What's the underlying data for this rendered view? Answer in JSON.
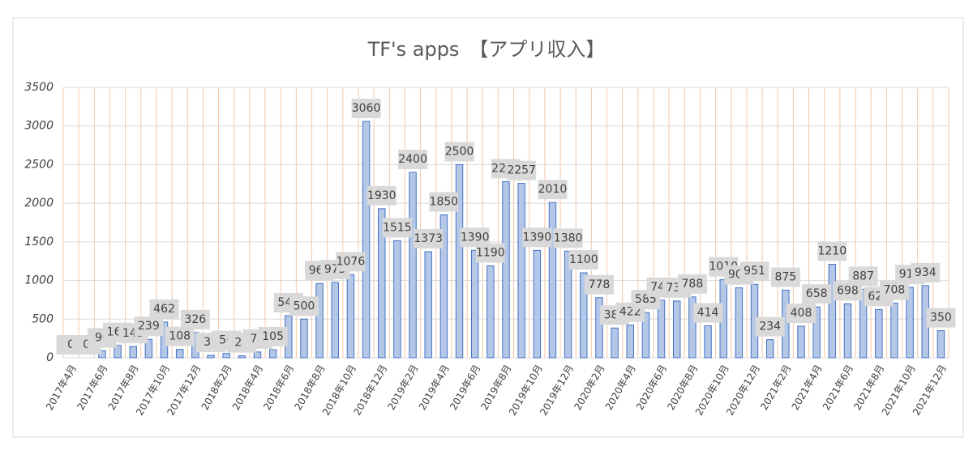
{
  "chart_data": {
    "type": "bar",
    "title": "TF's apps　【アプリ収入】",
    "categories": [
      "2017年4月",
      null,
      "2017年6月",
      null,
      "2017年8月",
      null,
      "2017年10月",
      null,
      "2017年12月",
      null,
      "2018年2月",
      null,
      "2018年4月",
      null,
      "2018年6月",
      null,
      "2018年8月",
      null,
      "2018年10月",
      null,
      "2018年12月",
      null,
      "2019年2月",
      null,
      "2019年4月",
      null,
      "2019年6月",
      null,
      "2019年8月",
      null,
      "2019年10月",
      null,
      "2019年12月",
      null,
      "2020年2月",
      null,
      "2020年4月",
      null,
      "2020年6月",
      null,
      "2020年8月",
      null,
      "2020年10月",
      null,
      "2020年12月",
      null,
      "2021年2月",
      null,
      "2021年4月",
      null,
      "2021年6月",
      null,
      "2021年8月",
      null,
      "2021年10月",
      null,
      "2021年12月"
    ],
    "values": [
      0,
      0,
      90,
      160,
      145,
      239,
      462,
      108,
      326,
      31,
      56,
      25,
      75,
      105,
      545,
      500,
      960,
      975,
      1076,
      3060,
      1930,
      1515,
      2400,
      1373,
      1850,
      2500,
      1390,
      1190,
      2280,
      2257,
      1390,
      2010,
      1380,
      1100,
      778,
      385,
      422,
      585,
      745,
      735,
      788,
      414,
      1010,
      905,
      951,
      234,
      875,
      408,
      658,
      1210,
      698,
      887,
      625,
      708,
      910,
      934,
      350
    ],
    "color": "#b4c7e7",
    "edge_color": "#4472c4",
    "ylim": [
      0,
      3500
    ],
    "yticks": [
      0,
      500,
      1000,
      1500,
      2000,
      2500,
      3000,
      3500
    ],
    "grid": true
  }
}
